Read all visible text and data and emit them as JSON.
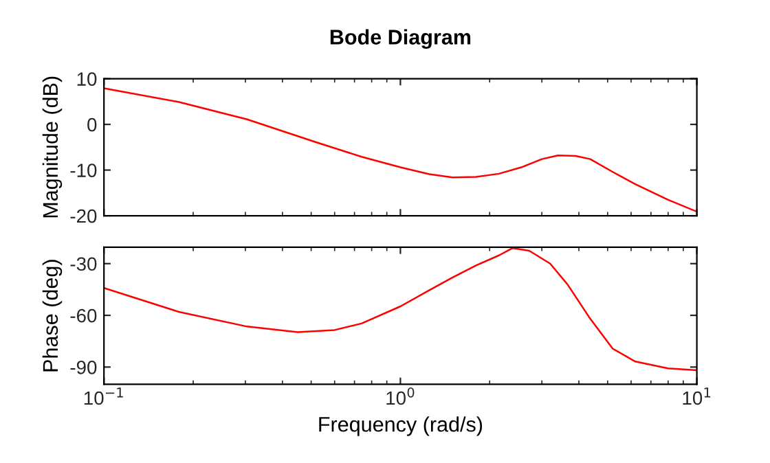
{
  "chart_data": [
    {
      "type": "line",
      "title": "Bode Diagram",
      "ylabel": "Magnitude (dB)",
      "log": "x",
      "xlim": [
        0.1,
        10
      ],
      "xticks": [
        {
          "value": 0.1,
          "label": null
        },
        {
          "value": 1,
          "label": null
        },
        {
          "value": 10,
          "label": null
        }
      ],
      "ylim": [
        -20,
        10
      ],
      "yticks": [
        -20,
        -10,
        0,
        10
      ],
      "tick_labels": "y",
      "grid": false,
      "legend": false,
      "series": [
        {
          "color": "#ff0000",
          "x": [
            0.1,
            0.179,
            0.304,
            0.519,
            0.74,
            1.0,
            1.25,
            1.5,
            1.8,
            2.15,
            2.56,
            3.0,
            3.4,
            3.9,
            4.37,
            5.2,
            6.2,
            8.0,
            10
          ],
          "values": [
            7.9,
            4.9,
            1.1,
            -3.9,
            -7.1,
            -9.4,
            -10.9,
            -11.6,
            -11.5,
            -10.8,
            -9.4,
            -7.6,
            -6.8,
            -6.9,
            -7.6,
            -10.4,
            -13.1,
            -16.5,
            -19.1
          ]
        }
      ]
    },
    {
      "type": "line",
      "xlabel": "Frequency (rad/s)",
      "ylabel": "Phase (deg)",
      "log": "x",
      "xlim": [
        0.1,
        10
      ],
      "xticks": [
        {
          "value": 0.1,
          "label": "10$^{−1}$"
        },
        {
          "value": 1,
          "label": "10$^{0}$"
        },
        {
          "value": 10,
          "label": "10$^{1}$"
        }
      ],
      "ylim": [
        -100,
        -20.5
      ],
      "yticks": [
        -90,
        -60,
        -30
      ],
      "grid": false,
      "legend": false,
      "series": [
        {
          "color": "#ff0000",
          "x": [
            0.1,
            0.179,
            0.304,
            0.45,
            0.6,
            0.74,
            1.0,
            1.25,
            1.5,
            1.8,
            2.15,
            2.39,
            2.72,
            3.2,
            3.66,
            4.37,
            5.2,
            6.2,
            8.0,
            10
          ],
          "values": [
            -44.1,
            -58,
            -66.5,
            -69.7,
            -68.5,
            -64.7,
            -54.8,
            -45.5,
            -38,
            -31,
            -25.2,
            -21,
            -22.5,
            -30,
            -42,
            -62,
            -79.3,
            -86.8,
            -90.8,
            -91.9
          ]
        }
      ]
    }
  ]
}
